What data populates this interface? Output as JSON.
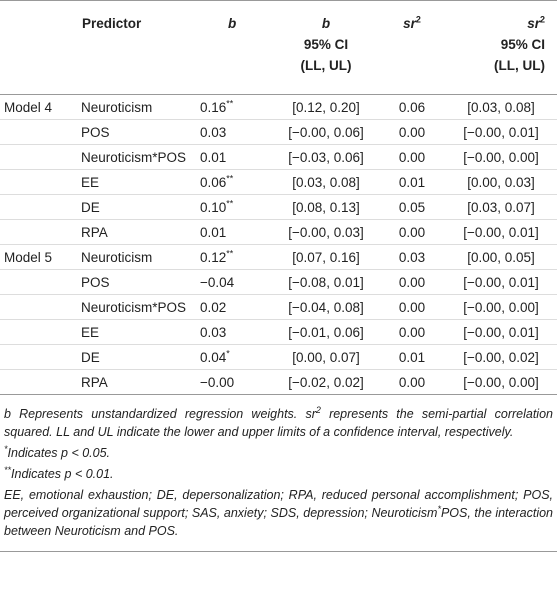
{
  "header": {
    "predictor": "Predictor",
    "b": "b",
    "b_ci": {
      "name": "b",
      "line2": "95% CI",
      "line3": "(LL, UL)"
    },
    "sr2": {
      "text": "sr",
      "sup": "2"
    },
    "sr2_ci": {
      "text": "sr",
      "sup": "2",
      "line2": "95% CI",
      "line3": "(LL, UL)"
    }
  },
  "table": {
    "rows": [
      {
        "model": "Model 4",
        "predictor": "Neuroticism",
        "b": "0.16",
        "b_sup": "**",
        "b_ci": "[0.12, 0.20]",
        "sr2": "0.06",
        "sr2_ci": "[0.03, 0.08]"
      },
      {
        "predictor": "POS",
        "b": "0.03",
        "b_ci": "[−0.00, 0.06]",
        "sr2": "0.00",
        "sr2_ci": "[−0.00, 0.01]"
      },
      {
        "predictor": "Neuroticism*POS",
        "b": "0.01",
        "b_ci": "[−0.03, 0.06]",
        "sr2": "0.00",
        "sr2_ci": "[−0.00, 0.00]"
      },
      {
        "predictor": "EE",
        "b": "0.06",
        "b_sup": "**",
        "b_ci": "[0.03, 0.08]",
        "sr2": "0.01",
        "sr2_ci": "[0.00, 0.03]"
      },
      {
        "predictor": "DE",
        "b": "0.10",
        "b_sup": "**",
        "b_ci": "[0.08, 0.13]",
        "sr2": "0.05",
        "sr2_ci": "[0.03, 0.07]"
      },
      {
        "predictor": "RPA",
        "b": "0.01",
        "b_ci": "[−0.00, 0.03]",
        "sr2": "0.00",
        "sr2_ci": "[−0.00, 0.01]"
      },
      {
        "model": "Model 5",
        "predictor": "Neuroticism",
        "b": "0.12",
        "b_sup": "**",
        "b_ci": "[0.07, 0.16]",
        "sr2": "0.03",
        "sr2_ci": "[0.00, 0.05]"
      },
      {
        "predictor": "POS",
        "b": "−0.04",
        "b_ci": "[−0.08, 0.01]",
        "sr2": "0.00",
        "sr2_ci": "[−0.00, 0.01]"
      },
      {
        "predictor": "Neuroticism*POS",
        "b": "0.02",
        "b_ci": "[−0.04, 0.08]",
        "sr2": "0.00",
        "sr2_ci": "[−0.00, 0.00]"
      },
      {
        "predictor": "EE",
        "b": "0.03",
        "b_ci": "[−0.01, 0.06]",
        "sr2": "0.00",
        "sr2_ci": "[−0.00, 0.01]"
      },
      {
        "predictor": "DE",
        "b": "0.04",
        "b_sup": "*",
        "b_ci": "[0.00, 0.07]",
        "sr2": "0.01",
        "sr2_ci": "[−0.00, 0.02]"
      },
      {
        "predictor": "RPA",
        "b": "−0.00",
        "b_ci": "[−0.02, 0.02]",
        "sr2": "0.00",
        "sr2_ci": "[−0.00, 0.00]"
      }
    ]
  },
  "notes": [
    [
      {
        "t": "b Represents unstandardized regression weights. sr"
      },
      {
        "sup": "2"
      },
      {
        "t": " represents the semi-partial correlation squared. LL and UL indicate the lower and upper limits of a confidence interval, respectively."
      }
    ],
    [
      {
        "sup": "*"
      },
      {
        "t": "Indicates p < 0.05."
      }
    ],
    [
      {
        "sup": "**"
      },
      {
        "t": "Indicates p < 0.01."
      }
    ],
    [
      {
        "t": "EE, emotional exhaustion; DE, depersonalization; RPA, reduced personal accomplishment; POS, perceived organizational support; SAS, anxiety; SDS, depression; Neuroticism"
      },
      {
        "sup": "*"
      },
      {
        "t": "POS, the interaction between Neuroticism and POS."
      }
    ]
  ]
}
